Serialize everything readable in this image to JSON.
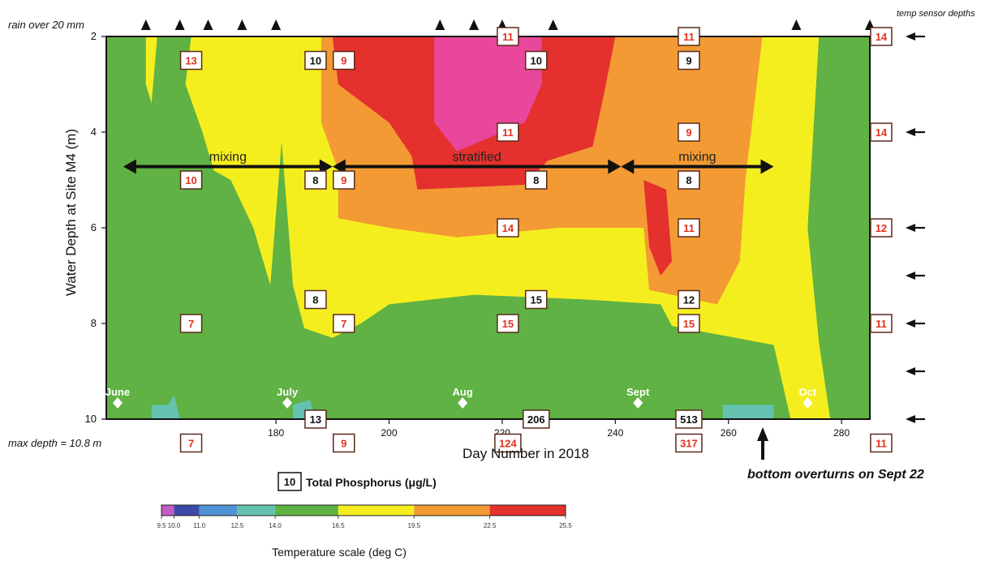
{
  "chart_data": {
    "type": "heatmap",
    "xlabel": "Day Number in 2018",
    "ylabel": "Water Depth at Site M4 (m)",
    "xlim": [
      150,
      285
    ],
    "ylim": [
      2,
      10
    ],
    "x_ticks": [
      "180",
      "200",
      "220",
      "240",
      "260",
      "280"
    ],
    "x_tick_values": [
      180,
      200,
      220,
      240,
      260,
      280
    ],
    "y_ticks": [
      "2",
      "4",
      "6",
      "8",
      "10"
    ],
    "y_tick_values": [
      2,
      4,
      6,
      8,
      10
    ],
    "top_left_note": "rain over 20 mm",
    "top_right_note": "temp sensor depths",
    "bottom_left_note": "max depth = 10.8 m",
    "overturn_note": "bottom overturns on Sept 22",
    "rain_event_days": [
      157,
      163,
      168,
      174,
      180,
      209,
      215,
      220,
      229,
      272,
      285
    ],
    "sensor_depths": [
      2,
      4,
      6,
      7,
      8,
      9,
      10
    ],
    "months": [
      {
        "label": "June",
        "day": 152
      },
      {
        "label": "July",
        "day": 182
      },
      {
        "label": "Aug",
        "day": 213
      },
      {
        "label": "Sept",
        "day": 244
      },
      {
        "label": "Oct",
        "day": 274
      }
    ],
    "periods": [
      {
        "label": "mixing",
        "start": 153,
        "end": 190
      },
      {
        "label": "stratified",
        "start": 190,
        "end": 241
      },
      {
        "label": "mixing",
        "start": 241,
        "end": 268
      }
    ],
    "phosphorus_legend": {
      "sample": "10",
      "label": "Total Phosphorus (μg/L)"
    },
    "phosphorus_values": [
      {
        "day": 165,
        "depth": 2.5,
        "value": "13",
        "color": "red"
      },
      {
        "day": 165,
        "depth": 5,
        "value": "10",
        "color": "red"
      },
      {
        "day": 165,
        "depth": 8,
        "value": "7",
        "color": "red"
      },
      {
        "day": 165,
        "depth": 10.5,
        "value": "7",
        "color": "red"
      },
      {
        "day": 187,
        "depth": 2.5,
        "value": "10",
        "color": "black"
      },
      {
        "day": 187,
        "depth": 5,
        "value": "8",
        "color": "black"
      },
      {
        "day": 187,
        "depth": 7.5,
        "value": "8",
        "color": "black"
      },
      {
        "day": 187,
        "depth": 10,
        "value": "13",
        "color": "black"
      },
      {
        "day": 192,
        "depth": 2.5,
        "value": "9",
        "color": "red"
      },
      {
        "day": 192,
        "depth": 5,
        "value": "9",
        "color": "red"
      },
      {
        "day": 192,
        "depth": 8,
        "value": "7",
        "color": "red"
      },
      {
        "day": 192,
        "depth": 10.5,
        "value": "9",
        "color": "red"
      },
      {
        "day": 221,
        "depth": 2,
        "value": "11",
        "color": "red"
      },
      {
        "day": 221,
        "depth": 4,
        "value": "11",
        "color": "red"
      },
      {
        "day": 221,
        "depth": 6,
        "value": "14",
        "color": "red"
      },
      {
        "day": 221,
        "depth": 8,
        "value": "15",
        "color": "red"
      },
      {
        "day": 221,
        "depth": 10.5,
        "value": "124",
        "color": "red"
      },
      {
        "day": 226,
        "depth": 2.5,
        "value": "10",
        "color": "black"
      },
      {
        "day": 226,
        "depth": 5,
        "value": "8",
        "color": "black"
      },
      {
        "day": 226,
        "depth": 7.5,
        "value": "15",
        "color": "black"
      },
      {
        "day": 226,
        "depth": 10,
        "value": "206",
        "color": "black"
      },
      {
        "day": 253,
        "depth": 2,
        "value": "11",
        "color": "red"
      },
      {
        "day": 253,
        "depth": 4,
        "value": "9",
        "color": "red"
      },
      {
        "day": 253,
        "depth": 6,
        "value": "11",
        "color": "red"
      },
      {
        "day": 253,
        "depth": 8,
        "value": "15",
        "color": "red"
      },
      {
        "day": 253,
        "depth": 10.5,
        "value": "317",
        "color": "red"
      },
      {
        "day": 253,
        "depth": 2.5,
        "value": "9",
        "color": "black"
      },
      {
        "day": 253,
        "depth": 5,
        "value": "8",
        "color": "black"
      },
      {
        "day": 253,
        "depth": 7.5,
        "value": "12",
        "color": "black"
      },
      {
        "day": 253,
        "depth": 10,
        "value": "513",
        "color": "black"
      },
      {
        "day": 287,
        "depth": 2,
        "value": "14",
        "color": "red"
      },
      {
        "day": 287,
        "depth": 4,
        "value": "14",
        "color": "red"
      },
      {
        "day": 287,
        "depth": 6,
        "value": "12",
        "color": "red"
      },
      {
        "day": 287,
        "depth": 8,
        "value": "11",
        "color": "red"
      },
      {
        "day": 287,
        "depth": 10.5,
        "value": "11",
        "color": "red"
      }
    ],
    "temperature_scale": {
      "label": "Temperature scale (deg C)",
      "tick_labels": [
        "9.5",
        "10.0",
        "11.0",
        "12.5",
        "14.0",
        "16.5",
        "19.5",
        "22.5",
        "25.5"
      ],
      "tick_values": [
        9.5,
        10.0,
        11.0,
        12.5,
        14.0,
        16.5,
        19.5,
        22.5,
        25.5
      ],
      "colors": [
        "#c35cc6",
        "#3a4aa6",
        "#4f93d6",
        "#64c3b0",
        "#5fb243",
        "#f5ee1f",
        "#f39a34",
        "#e4312d"
      ]
    },
    "temperature_bands": [
      {
        "range": "16.5-19.5",
        "color": "#f5ee1f"
      },
      {
        "range": "19.5-22.5",
        "color": "#f39a34"
      },
      {
        "range": "22.5-25.5",
        "color": "#e4312d"
      },
      {
        "range": ">25",
        "color": "#e8479b"
      },
      {
        "range": "14.0-16.5",
        "color": "#5fb243"
      },
      {
        "range": "12.5-14.0",
        "color": "#64c3b0"
      }
    ]
  }
}
